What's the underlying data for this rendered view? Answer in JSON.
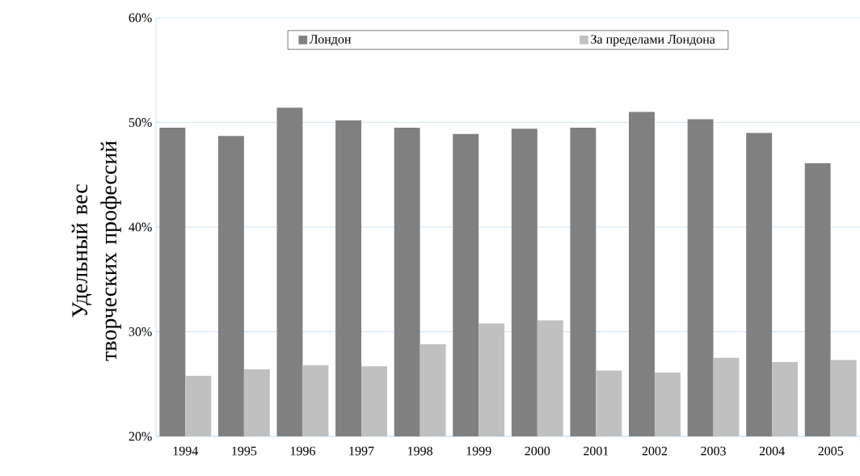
{
  "chart_data": {
    "type": "bar",
    "ylabel": "Удельный вес творческих профессий",
    "categories": [
      "1994",
      "1995",
      "1996",
      "1997",
      "1998",
      "1999",
      "2000",
      "2001",
      "2002",
      "2003",
      "2004",
      "2005"
    ],
    "series": [
      {
        "name": "Лондон",
        "color": "#808080",
        "values": [
          49.5,
          48.7,
          51.4,
          50.2,
          49.5,
          48.9,
          49.4,
          49.5,
          51.0,
          50.3,
          49.0,
          46.1
        ]
      },
      {
        "name": "За пределами  Лондона",
        "color": "#c0c0c0",
        "values": [
          25.8,
          26.4,
          26.8,
          26.7,
          28.8,
          30.8,
          31.1,
          26.3,
          26.1,
          27.5,
          27.1,
          27.3
        ]
      }
    ],
    "ylim": [
      20,
      60
    ],
    "yticks": [
      {
        "value": 20,
        "label": "20%"
      },
      {
        "value": 30,
        "label": "30%"
      },
      {
        "value": 40,
        "label": "40%"
      },
      {
        "value": 50,
        "label": "50%"
      },
      {
        "value": 60,
        "label": "60%"
      }
    ],
    "grid": "y",
    "legend": "top"
  }
}
